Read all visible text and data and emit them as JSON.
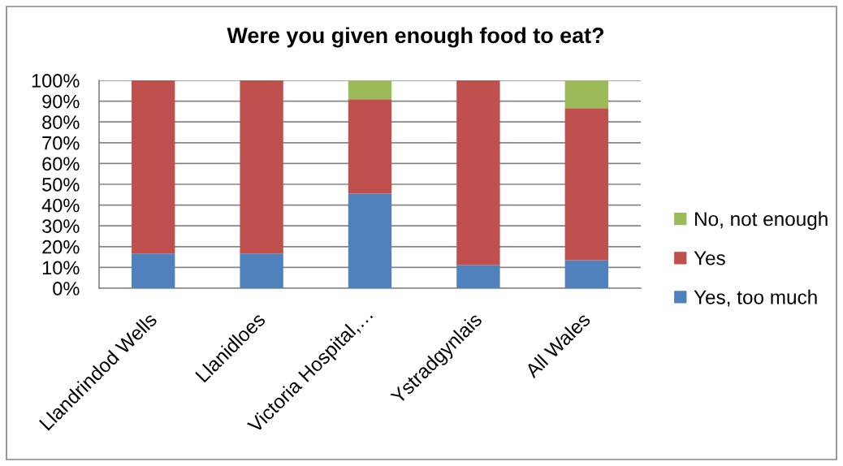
{
  "chart_data": {
    "type": "bar",
    "stacked": true,
    "title": "Were you given enough food to eat?",
    "categories": [
      "Llandrindod Wells",
      "Llanidloes",
      "Victoria Hospital,…",
      "Ystradgynlais",
      "All Wales"
    ],
    "series": [
      {
        "name": "Yes, too much",
        "color": "#4f81bd",
        "values": [
          16.7,
          16.7,
          45.5,
          11.1,
          13.5
        ]
      },
      {
        "name": "Yes",
        "color": "#c0504d",
        "values": [
          83.3,
          83.3,
          45.4,
          88.9,
          73.1
        ]
      },
      {
        "name": "No, not enough",
        "color": "#9bbb59",
        "values": [
          0,
          0,
          9.1,
          0,
          13.4
        ]
      }
    ],
    "ylim": [
      0,
      100
    ],
    "yticks": [
      {
        "value": 0,
        "label": "0%"
      },
      {
        "value": 10,
        "label": "10%"
      },
      {
        "value": 20,
        "label": "20%"
      },
      {
        "value": 30,
        "label": "30%"
      },
      {
        "value": 40,
        "label": "40%"
      },
      {
        "value": 50,
        "label": "50%"
      },
      {
        "value": 60,
        "label": "60%"
      },
      {
        "value": 70,
        "label": "70%"
      },
      {
        "value": 80,
        "label": "80%"
      },
      {
        "value": 90,
        "label": "90%"
      },
      {
        "value": 100,
        "label": "100%"
      }
    ],
    "grid": "y",
    "legend": "right"
  }
}
